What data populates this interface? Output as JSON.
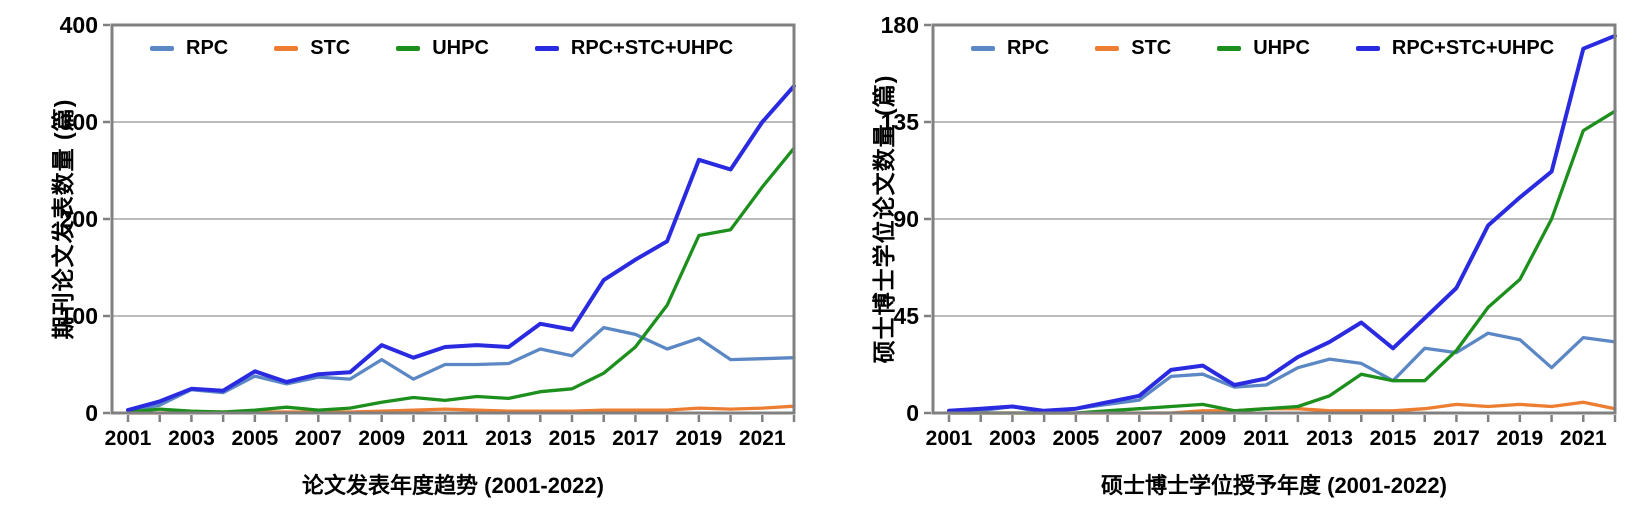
{
  "figure": {
    "description_note": ""
  },
  "chart_data": [
    {
      "type": "line",
      "title": "论文发表年度趋势 (2001-2022)",
      "ylabel": "期刊论文发表数量 (篇)",
      "ylim": [
        0,
        400
      ],
      "yticks": [
        0,
        100,
        200,
        300,
        400
      ],
      "x": [
        2001,
        2002,
        2003,
        2004,
        2005,
        2006,
        2007,
        2008,
        2009,
        2010,
        2011,
        2012,
        2013,
        2014,
        2015,
        2016,
        2017,
        2018,
        2019,
        2020,
        2021,
        2022
      ],
      "xtick_label_years": [
        2001,
        2003,
        2005,
        2007,
        2009,
        2011,
        2013,
        2015,
        2017,
        2019,
        2021
      ],
      "grid": "horizontal",
      "legend_position": "top-inside",
      "series": [
        {
          "name": "RPC",
          "color": "#5b87c5",
          "values": [
            2,
            8,
            24,
            21,
            38,
            30,
            37,
            35,
            55,
            35,
            50,
            50,
            51,
            66,
            59,
            88,
            81,
            66,
            77,
            55,
            56,
            57
          ]
        },
        {
          "name": "STC",
          "color": "#ed7d31",
          "values": [
            0,
            0,
            1,
            1,
            1,
            1,
            1,
            1,
            2,
            3,
            4,
            3,
            2,
            2,
            2,
            3,
            3,
            3,
            5,
            4,
            5,
            7
          ]
        },
        {
          "name": "UHPC",
          "color": "#1c8f1c",
          "values": [
            1,
            4,
            2,
            1,
            3,
            6,
            3,
            5,
            11,
            16,
            13,
            17,
            15,
            22,
            25,
            41,
            68,
            111,
            183,
            189,
            233,
            273
          ]
        },
        {
          "name": "RPC+STC+UHPC",
          "color": "#2a2ae0",
          "values": [
            3,
            12,
            25,
            23,
            43,
            32,
            40,
            42,
            70,
            57,
            68,
            70,
            68,
            92,
            86,
            137,
            158,
            177,
            261,
            251,
            300,
            337
          ]
        }
      ]
    },
    {
      "type": "line",
      "title": "硕士博士学位授予年度 (2001-2022)",
      "ylabel": "硕士博士学位论文数量 (篇)",
      "ylim": [
        0,
        180
      ],
      "yticks": [
        0,
        45,
        90,
        135,
        180
      ],
      "x": [
        2001,
        2002,
        2003,
        2004,
        2005,
        2006,
        2007,
        2008,
        2009,
        2010,
        2011,
        2012,
        2013,
        2014,
        2015,
        2016,
        2017,
        2018,
        2019,
        2020,
        2021,
        2022
      ],
      "xtick_label_years": [
        2001,
        2003,
        2005,
        2007,
        2009,
        2011,
        2013,
        2015,
        2017,
        2019,
        2021
      ],
      "grid": "horizontal",
      "legend_position": "top-inside",
      "series": [
        {
          "name": "RPC",
          "color": "#5b87c5",
          "values": [
            1,
            1,
            3,
            0,
            2,
            4,
            6,
            17,
            18,
            12,
            13,
            21,
            25,
            23,
            15,
            30,
            28,
            37,
            34,
            21,
            35,
            33
          ]
        },
        {
          "name": "STC",
          "color": "#ed7d31",
          "values": [
            0,
            0,
            0,
            0,
            0,
            0,
            0,
            0,
            1,
            1,
            2,
            2,
            1,
            1,
            1,
            2,
            4,
            3,
            4,
            3,
            5,
            2
          ]
        },
        {
          "name": "UHPC",
          "color": "#1c8f1c",
          "values": [
            0,
            0,
            0,
            0,
            0,
            1,
            2,
            3,
            4,
            1,
            2,
            3,
            8,
            18,
            15,
            15,
            29,
            49,
            62,
            90,
            131,
            140
          ]
        },
        {
          "name": "RPC+STC+UHPC",
          "color": "#2a2ae0",
          "values": [
            1,
            2,
            3,
            1,
            2,
            5,
            8,
            20,
            22,
            13,
            16,
            26,
            33,
            42,
            30,
            44,
            58,
            87,
            100,
            112,
            169,
            175
          ]
        }
      ]
    }
  ],
  "style_colors": {
    "gridline": "#a6a6a6",
    "plot_border": "#808080",
    "tick": "#808080"
  }
}
